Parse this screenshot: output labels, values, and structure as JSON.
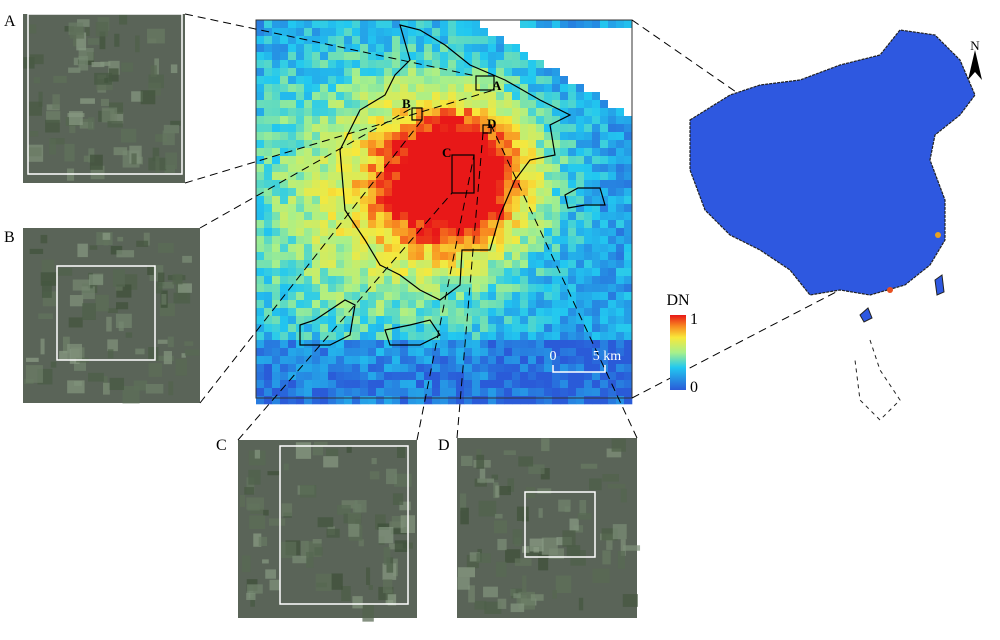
{
  "panels": [
    {
      "label": "A"
    },
    {
      "label": "B"
    },
    {
      "label": "C"
    },
    {
      "label": "D"
    }
  ],
  "map_labels": [
    "A",
    "B",
    "C",
    "D"
  ],
  "legend": {
    "title": "DN",
    "max": "1",
    "min": "0"
  },
  "scalebar": {
    "start": "0",
    "end": "5 km"
  },
  "north": "N"
}
